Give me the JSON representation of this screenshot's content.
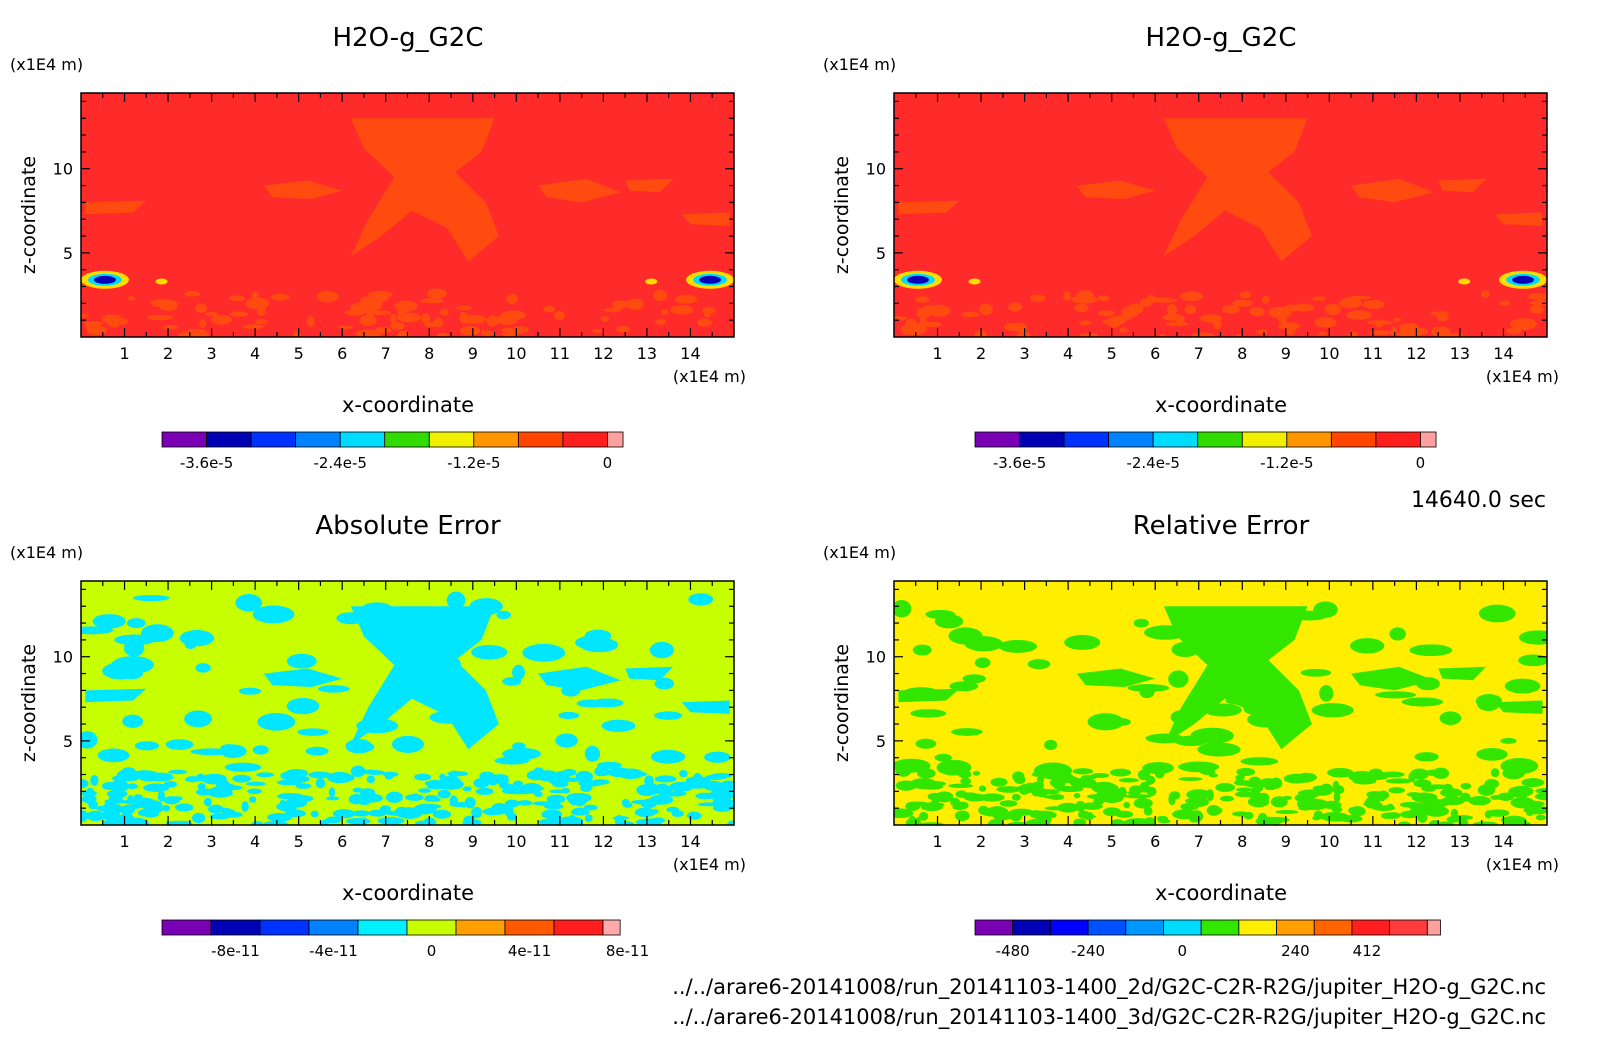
{
  "panels": [
    {
      "title": "H2O-g_G2C",
      "unit_y": "(x1E4 m)",
      "unit_x": "(x1E4 m)",
      "xlabel": "x-coordinate",
      "ylabel": "z-coordinate",
      "x_ticks": [
        "1",
        "2",
        "3",
        "4",
        "5",
        "6",
        "7",
        "8",
        "9",
        "10",
        "11",
        "12",
        "13",
        "14"
      ],
      "y_ticks": [
        "5",
        "10"
      ],
      "background": "#ff2a2a",
      "blob_color": "#ff4a10",
      "colorbar": {
        "colors": [
          "#7a00b4",
          "#0000b4",
          "#0032ff",
          "#0082ff",
          "#00dcff",
          "#32dc00",
          "#f0f000",
          "#ff9600",
          "#ff4600",
          "#ff1e1e",
          "#ffa0a0"
        ],
        "labels": [
          "-3.6e-5",
          "-2.4e-5",
          "-1.2e-5",
          "0"
        ]
      }
    },
    {
      "title": "H2O-g_G2C",
      "unit_y": "(x1E4 m)",
      "unit_x": "(x1E4 m)",
      "xlabel": "x-coordinate",
      "ylabel": "z-coordinate",
      "x_ticks": [
        "1",
        "2",
        "3",
        "4",
        "5",
        "6",
        "7",
        "8",
        "9",
        "10",
        "11",
        "12",
        "13",
        "14"
      ],
      "y_ticks": [
        "5",
        "10"
      ],
      "background": "#ff2a2a",
      "blob_color": "#ff4a10",
      "colorbar": {
        "colors": [
          "#7a00b4",
          "#0000b4",
          "#0032ff",
          "#0082ff",
          "#00dcff",
          "#32dc00",
          "#f0f000",
          "#ff9600",
          "#ff4600",
          "#ff1e1e",
          "#ffa0a0"
        ],
        "labels": [
          "-3.6e-5",
          "-2.4e-5",
          "-1.2e-5",
          "0"
        ]
      }
    },
    {
      "title": "Absolute Error",
      "unit_y": "(x1E4 m)",
      "unit_x": "(x1E4 m)",
      "xlabel": "x-coordinate",
      "ylabel": "z-coordinate",
      "x_ticks": [
        "1",
        "2",
        "3",
        "4",
        "5",
        "6",
        "7",
        "8",
        "9",
        "10",
        "11",
        "12",
        "13",
        "14"
      ],
      "y_ticks": [
        "5",
        "10"
      ],
      "background": "#c8ff00",
      "blob_color": "#00e6ff",
      "colorbar": {
        "colors": [
          "#7a00b4",
          "#0000b4",
          "#0032ff",
          "#0082ff",
          "#00f0ff",
          "#c8ff00",
          "#ffa000",
          "#ff5a00",
          "#ff1e1e",
          "#ffaaaa"
        ],
        "labels": [
          "-8e-11",
          "-4e-11",
          "0",
          "4e-11",
          "8e-11"
        ]
      }
    },
    {
      "title": "Relative Error",
      "unit_y": "(x1E4 m)",
      "unit_x": "(x1E4 m)",
      "xlabel": "x-coordinate",
      "ylabel": "z-coordinate",
      "x_ticks": [
        "1",
        "2",
        "3",
        "4",
        "5",
        "6",
        "7",
        "8",
        "9",
        "10",
        "11",
        "12",
        "13",
        "14"
      ],
      "y_ticks": [
        "5",
        "10"
      ],
      "background": "#ffee00",
      "blob_color": "#32e600",
      "colorbar": {
        "colors": [
          "#7a00b4",
          "#0000b4",
          "#0000ff",
          "#0050ff",
          "#0096ff",
          "#00dcff",
          "#32e600",
          "#ffee00",
          "#ffa000",
          "#ff6400",
          "#ff1e1e",
          "#ff3c3c",
          "#ffa0a0"
        ],
        "labels": [
          "-480",
          "-240",
          "0",
          "240",
          "412"
        ]
      }
    }
  ],
  "time_label": "14640.0 sec",
  "file_paths": [
    "../../arare6-20141008/run_20141103-1400_2d/G2C-C2R-R2G/jupiter_H2O-g_G2C.nc",
    "../../arare6-20141008/run_20141103-1400_3d/G2C-C2R-R2G/jupiter_H2O-g_G2C.nc"
  ],
  "chart_data": [
    {
      "type": "heatmap",
      "title": "H2O-g_G2C",
      "xlabel": "x-coordinate",
      "ylabel": "z-coordinate",
      "xlim": [
        0,
        15
      ],
      "ylim": [
        0,
        14.5
      ],
      "colorbar_labels": [
        "-3.6e-5",
        "-2.4e-5",
        "-1.2e-5",
        "0"
      ]
    },
    {
      "type": "heatmap",
      "title": "H2O-g_G2C",
      "xlabel": "x-coordinate",
      "ylabel": "z-coordinate",
      "xlim": [
        0,
        15
      ],
      "ylim": [
        0,
        14.5
      ],
      "colorbar_labels": [
        "-3.6e-5",
        "-2.4e-5",
        "-1.2e-5",
        "0"
      ]
    },
    {
      "type": "heatmap",
      "title": "Absolute Error",
      "xlabel": "x-coordinate",
      "ylabel": "z-coordinate",
      "xlim": [
        0,
        15
      ],
      "ylim": [
        0,
        14.5
      ],
      "colorbar_labels": [
        "-8e-11",
        "-4e-11",
        "0",
        "4e-11",
        "8e-11"
      ]
    },
    {
      "type": "heatmap",
      "title": "Relative Error",
      "xlabel": "x-coordinate",
      "ylabel": "z-coordinate",
      "xlim": [
        0,
        15
      ],
      "ylim": [
        0,
        14.5
      ],
      "colorbar_labels": [
        "-480",
        "-240",
        "0",
        "240",
        "412"
      ]
    }
  ]
}
